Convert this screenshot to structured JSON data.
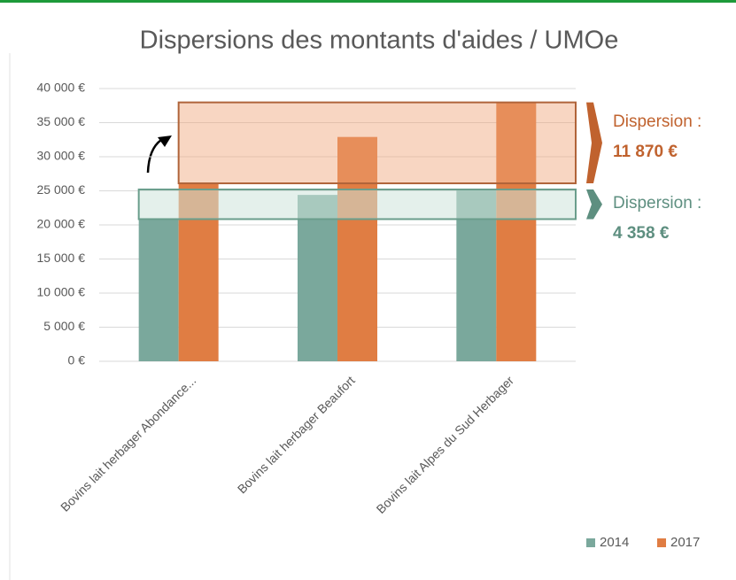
{
  "chart_data": {
    "type": "bar",
    "title": "Dispersions des montants d'aides / UMOe",
    "categories": [
      "Bovins lait herbager Abondance...",
      "Bovins lait herbager Beaufort",
      "Bovins lait Alpes du Sud Herbager"
    ],
    "series": [
      {
        "name": "2014",
        "color": "#7aa89c",
        "values": [
          20850,
          24400,
          25200
        ]
      },
      {
        "name": "2017",
        "color": "#e07d43",
        "values": [
          26100,
          32900,
          37970
        ]
      }
    ],
    "ylim": [
      0,
      40000
    ],
    "yticks": [
      {
        "value": 0,
        "label": "0 €"
      },
      {
        "value": 5000,
        "label": "5 000 €"
      },
      {
        "value": 10000,
        "label": "10 000 €"
      },
      {
        "value": 15000,
        "label": "15 000 €"
      },
      {
        "value": 20000,
        "label": "20 000 €"
      },
      {
        "value": 25000,
        "label": "25 000 €"
      },
      {
        "value": 30000,
        "label": "30 000 €"
      },
      {
        "value": 35000,
        "label": "35 000 €"
      },
      {
        "value": 40000,
        "label": "40 000 €"
      }
    ],
    "grid": true,
    "legend": "bottom-right",
    "annotations": [
      {
        "label": "Dispersion :",
        "value_label": "11 870 €",
        "color": "#c0622e"
      },
      {
        "label": "Dispersion :",
        "value_label": "4 358 €",
        "color": "#5e8f80"
      }
    ]
  }
}
